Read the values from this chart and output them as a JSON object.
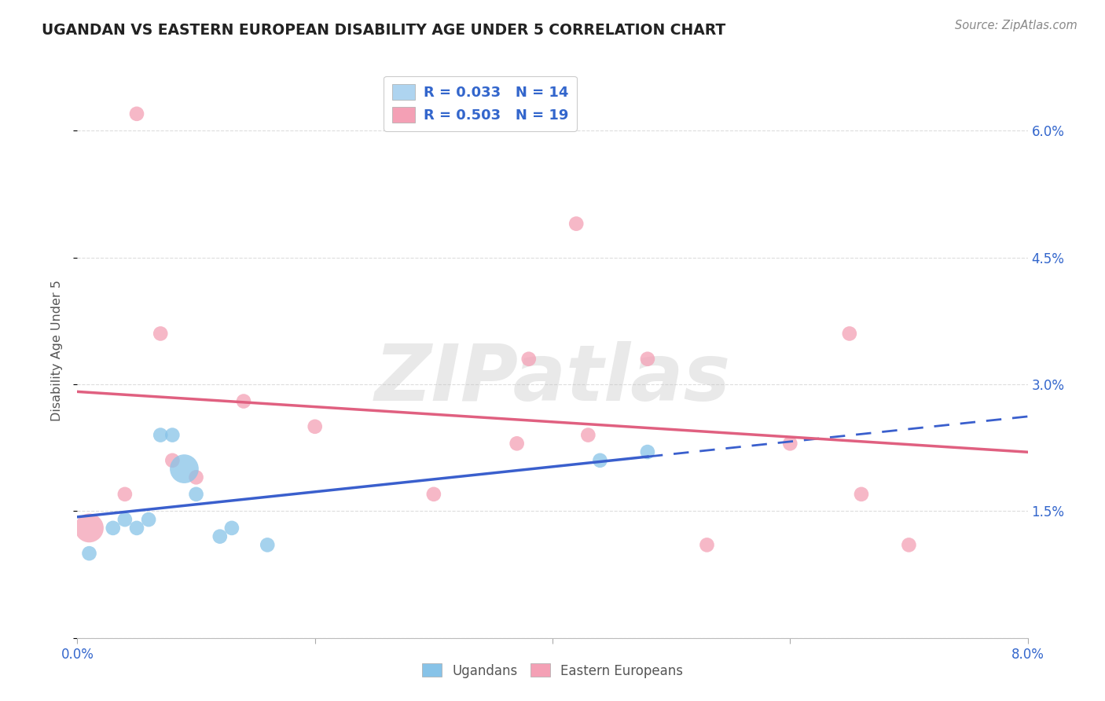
{
  "title": "UGANDAN VS EASTERN EUROPEAN DISABILITY AGE UNDER 5 CORRELATION CHART",
  "source": "Source: ZipAtlas.com",
  "ylabel": "Disability Age Under 5",
  "xlim": [
    0.0,
    0.08
  ],
  "ylim": [
    0.0,
    0.068
  ],
  "ytick_positions": [
    0.0,
    0.015,
    0.03,
    0.045,
    0.06
  ],
  "ytick_labels": [
    "",
    "1.5%",
    "3.0%",
    "4.5%",
    "6.0%"
  ],
  "xtick_positions": [
    0.0,
    0.02,
    0.04,
    0.06,
    0.08
  ],
  "xtick_labels": [
    "0.0%",
    "",
    "",
    "",
    "8.0%"
  ],
  "ugandan_x": [
    0.001,
    0.003,
    0.004,
    0.005,
    0.006,
    0.007,
    0.008,
    0.009,
    0.01,
    0.012,
    0.013,
    0.016,
    0.044,
    0.048
  ],
  "ugandan_y": [
    0.01,
    0.013,
    0.014,
    0.013,
    0.014,
    0.024,
    0.024,
    0.02,
    0.017,
    0.012,
    0.013,
    0.011,
    0.021,
    0.022
  ],
  "ugandan_size": [
    180,
    180,
    180,
    180,
    180,
    180,
    180,
    700,
    180,
    180,
    180,
    180,
    180,
    180
  ],
  "eastern_x": [
    0.001,
    0.004,
    0.005,
    0.007,
    0.008,
    0.01,
    0.014,
    0.02,
    0.03,
    0.037,
    0.038,
    0.043,
    0.042,
    0.048,
    0.053,
    0.06,
    0.065,
    0.066,
    0.07
  ],
  "eastern_y": [
    0.013,
    0.017,
    0.062,
    0.036,
    0.021,
    0.019,
    0.028,
    0.025,
    0.017,
    0.023,
    0.033,
    0.024,
    0.049,
    0.033,
    0.011,
    0.023,
    0.036,
    0.017,
    0.011
  ],
  "eastern_size": [
    700,
    180,
    180,
    180,
    180,
    180,
    180,
    180,
    180,
    180,
    180,
    180,
    180,
    180,
    180,
    180,
    180,
    180,
    180
  ],
  "ugandan_color": "#87C3E8",
  "eastern_color": "#F4A0B5",
  "ugandan_R": 0.033,
  "ugandan_N": 14,
  "eastern_R": 0.503,
  "eastern_N": 19,
  "blue_line_color": "#3A5FCD",
  "pink_line_color": "#E06080",
  "background_color": "#FFFFFF",
  "watermark": "ZIPatlas",
  "grid_color": "#DDDDDD",
  "legend_text_color": "#3366CC",
  "legend_box_blue": "#AED4F0",
  "legend_box_pink": "#F4A0B5"
}
